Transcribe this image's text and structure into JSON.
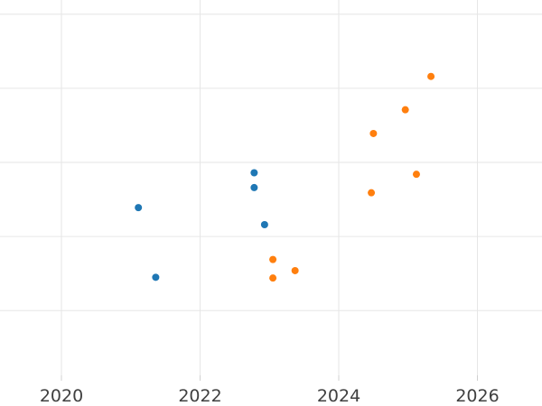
{
  "chart": {
    "background_color": "#ffffff",
    "grid_color": "#e6e6e6",
    "tick_mark_color": "#d0d0d0",
    "tick_label_color": "#404040",
    "series_colors": {
      "blue": "#1f77b4",
      "orange": "#ff7f0e"
    }
  },
  "chart_data": {
    "type": "scatter",
    "title": "",
    "xlabel": "",
    "ylabel": "",
    "x_ticks": [
      2020,
      2022,
      2024,
      2026
    ],
    "x_tick_labels": [
      "2020",
      "2022",
      "2024",
      "2026"
    ],
    "xlim": [
      2019.11,
      2026.93
    ],
    "ylim": [
      0.13,
      5.19
    ],
    "y_gridlines": [
      1,
      2,
      3,
      4,
      5
    ],
    "y_tick_labels": [],
    "y_axis_labels_visible": false,
    "grid": true,
    "legend": "none",
    "note": "y-axis is unlabeled; y values estimated in gridline units, bottom visible gridline = 1, spacing = 1 unit",
    "series": [
      {
        "name": "blue",
        "color": "#1f77b4",
        "points": [
          {
            "x": 2021.11,
            "y": 2.39
          },
          {
            "x": 2021.36,
            "y": 1.45
          },
          {
            "x": 2022.78,
            "y": 2.86
          },
          {
            "x": 2022.78,
            "y": 2.66
          },
          {
            "x": 2022.93,
            "y": 2.16
          }
        ]
      },
      {
        "name": "orange",
        "color": "#ff7f0e",
        "points": [
          {
            "x": 2023.05,
            "y": 1.69
          },
          {
            "x": 2023.05,
            "y": 1.44
          },
          {
            "x": 2023.37,
            "y": 1.54
          },
          {
            "x": 2024.47,
            "y": 2.59
          },
          {
            "x": 2024.5,
            "y": 3.39
          },
          {
            "x": 2024.96,
            "y": 3.71
          },
          {
            "x": 2025.12,
            "y": 2.84
          },
          {
            "x": 2025.33,
            "y": 4.16
          }
        ]
      }
    ]
  }
}
